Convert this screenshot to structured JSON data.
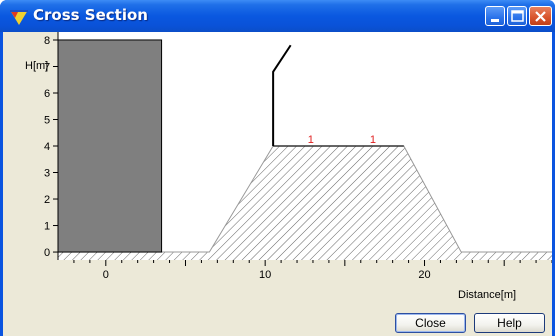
{
  "window": {
    "title": "Cross Section",
    "icons": [
      "app-icon",
      "minimize-icon",
      "maximize-icon",
      "close-icon"
    ]
  },
  "chart_data": {
    "type": "line",
    "title": "",
    "xlabel": "Distance[m]",
    "ylabel": "H[m]",
    "xlim": [
      -3,
      28
    ],
    "ylim": [
      -0.3,
      8.3
    ],
    "x_ticks": [
      "0",
      "10",
      "20"
    ],
    "y_ticks": [
      "0",
      "1",
      "2",
      "3",
      "4",
      "5",
      "6",
      "7",
      "8"
    ],
    "building": {
      "x": [
        -3,
        3.5
      ],
      "height": 8
    },
    "ground_level": 0,
    "dike_profile": {
      "x": [
        -3,
        6.5,
        10.5,
        18.7,
        22.3,
        28
      ],
      "y": [
        0,
        0,
        4,
        4,
        0,
        0
      ]
    },
    "barrier_line": {
      "x": [
        10.5,
        10.5,
        11.6
      ],
      "y": [
        4,
        6.8,
        7.8
      ]
    },
    "markers": {
      "x": [
        12.8,
        16.7
      ],
      "y": [
        4,
        4
      ],
      "labels": [
        "1",
        "1"
      ]
    },
    "colors": {
      "building": "#7f7f7f",
      "hatch": "#555555",
      "marker": "#e02020"
    }
  },
  "buttons": {
    "close_label": "Close",
    "help_label": "Help"
  }
}
